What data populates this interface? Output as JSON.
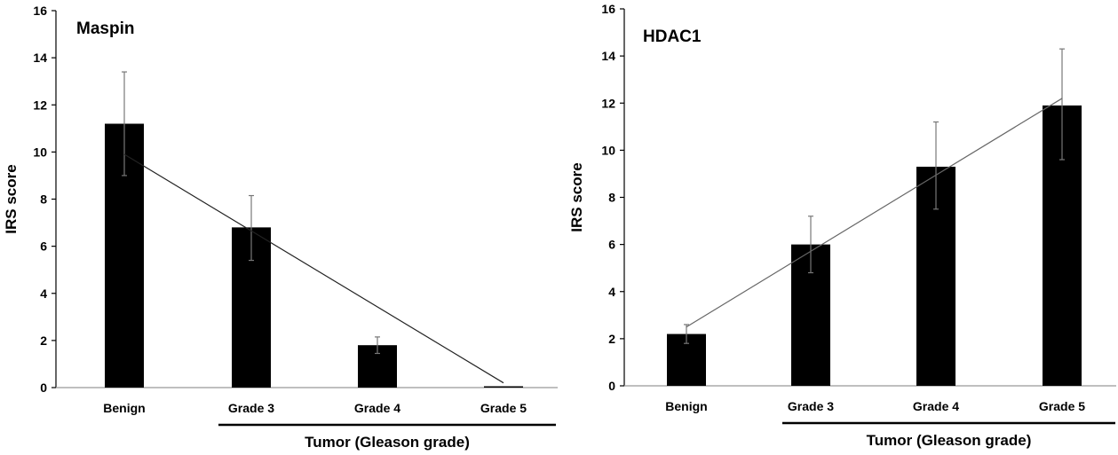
{
  "chart_data": [
    {
      "type": "bar",
      "title": "Maspin",
      "ylabel": "IRS score",
      "xlabel": "",
      "ylim": [
        0,
        16
      ],
      "yticks": [
        0,
        2,
        4,
        6,
        8,
        10,
        12,
        14,
        16
      ],
      "categories": [
        "Benign",
        "Grade 3",
        "Grade 4",
        "Grade 5"
      ],
      "values": [
        11.2,
        6.8,
        1.8,
        0.05
      ],
      "error_bars": [
        {
          "low": 9.0,
          "high": 13.4
        },
        {
          "low": 5.4,
          "high": 8.15
        },
        {
          "low": 1.45,
          "high": 2.15
        },
        {
          "low": 0.05,
          "high": 0.05
        }
      ],
      "trend_line": {
        "x": [
          "Benign",
          "Grade 5"
        ],
        "y": [
          9.9,
          0.2
        ]
      },
      "group_label": "Tumor (Gleason grade)",
      "group_categories": [
        "Grade 3",
        "Grade 4",
        "Grade 5"
      ],
      "grid": false,
      "bar_color": "#000000"
    },
    {
      "type": "bar",
      "title": "HDAC1",
      "ylabel": "IRS score",
      "xlabel": "",
      "ylim": [
        0,
        16
      ],
      "yticks": [
        0,
        2,
        4,
        6,
        8,
        10,
        12,
        14,
        16
      ],
      "categories": [
        "Benign",
        "Grade 3",
        "Grade 4",
        "Grade 5"
      ],
      "values": [
        2.2,
        6.0,
        9.3,
        11.9
      ],
      "error_bars": [
        {
          "low": 1.8,
          "high": 2.6
        },
        {
          "low": 4.8,
          "high": 7.2
        },
        {
          "low": 7.5,
          "high": 11.2
        },
        {
          "low": 9.6,
          "high": 14.3
        }
      ],
      "trend_line": {
        "x": [
          "Benign",
          "Grade 5"
        ],
        "y": [
          2.5,
          12.2
        ]
      },
      "group_label": "Tumor (Gleason grade)",
      "group_categories": [
        "Grade 3",
        "Grade 4",
        "Grade 5"
      ],
      "grid": false,
      "bar_color": "#000000"
    }
  ]
}
